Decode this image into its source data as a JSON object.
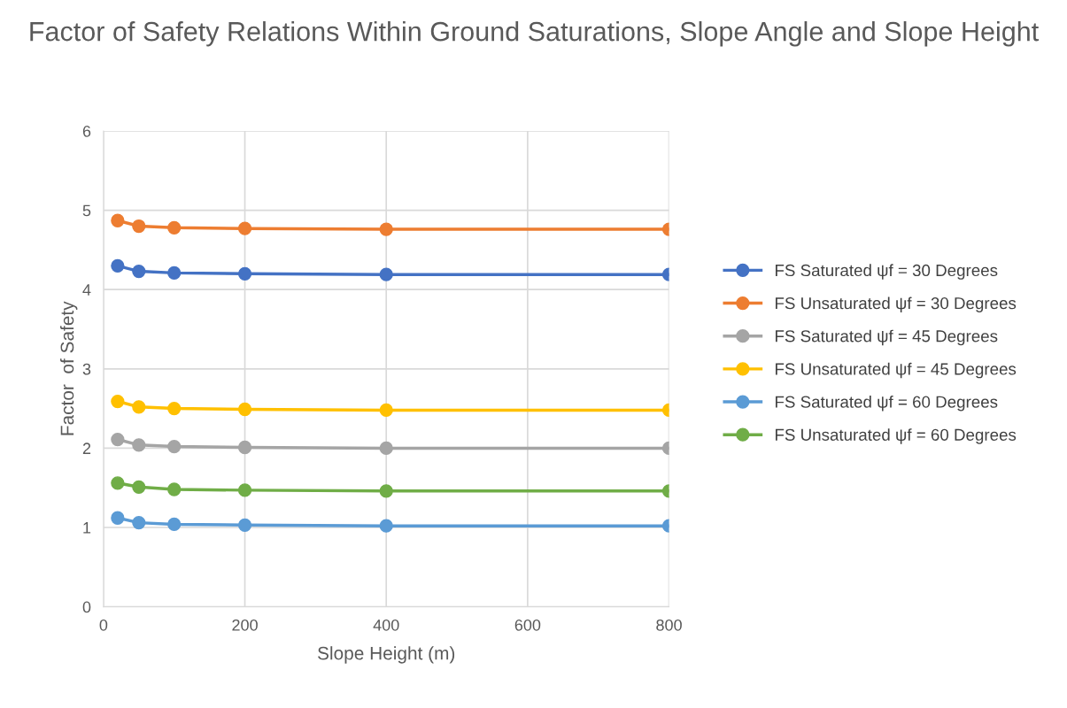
{
  "chart_data": {
    "type": "line",
    "title": "Factor of Safety Relations Within Ground Saturations, Slope Angle and Slope Height",
    "xlabel": "Slope Height (m)",
    "ylabel": "Factor  of Safety",
    "x": [
      20,
      50,
      100,
      200,
      400,
      800
    ],
    "series": [
      {
        "name": "FS Saturated ψf = 30 Degrees",
        "color": "#4472c4",
        "values": [
          4.3,
          4.23,
          4.21,
          4.2,
          4.19,
          4.19
        ]
      },
      {
        "name": "FS Unsaturated ψf = 30 Degrees",
        "color": "#ed7d31",
        "values": [
          4.87,
          4.8,
          4.78,
          4.77,
          4.76,
          4.76
        ]
      },
      {
        "name": "FS Saturated ψf = 45 Degrees",
        "color": "#a5a5a5",
        "values": [
          2.11,
          2.04,
          2.02,
          2.01,
          2.0,
          2.0
        ]
      },
      {
        "name": "FS Unsaturated ψf = 45 Degrees",
        "color": "#ffc000",
        "values": [
          2.59,
          2.52,
          2.5,
          2.49,
          2.48,
          2.48
        ]
      },
      {
        "name": "FS Saturated ψf = 60 Degrees",
        "color": "#5b9bd5",
        "values": [
          1.12,
          1.06,
          1.04,
          1.03,
          1.02,
          1.02
        ]
      },
      {
        "name": "FS Unsaturated ψf = 60 Degrees",
        "color": "#70ad47",
        "values": [
          1.56,
          1.51,
          1.48,
          1.47,
          1.46,
          1.46
        ]
      }
    ],
    "xlim": [
      0,
      800
    ],
    "xticks": [
      0,
      200,
      400,
      600,
      800
    ],
    "ylim": [
      0,
      6
    ],
    "yticks": [
      0,
      1,
      2,
      3,
      4,
      5,
      6
    ],
    "grid": true,
    "legend": "right",
    "marker": "circle",
    "line_style": "solid"
  }
}
